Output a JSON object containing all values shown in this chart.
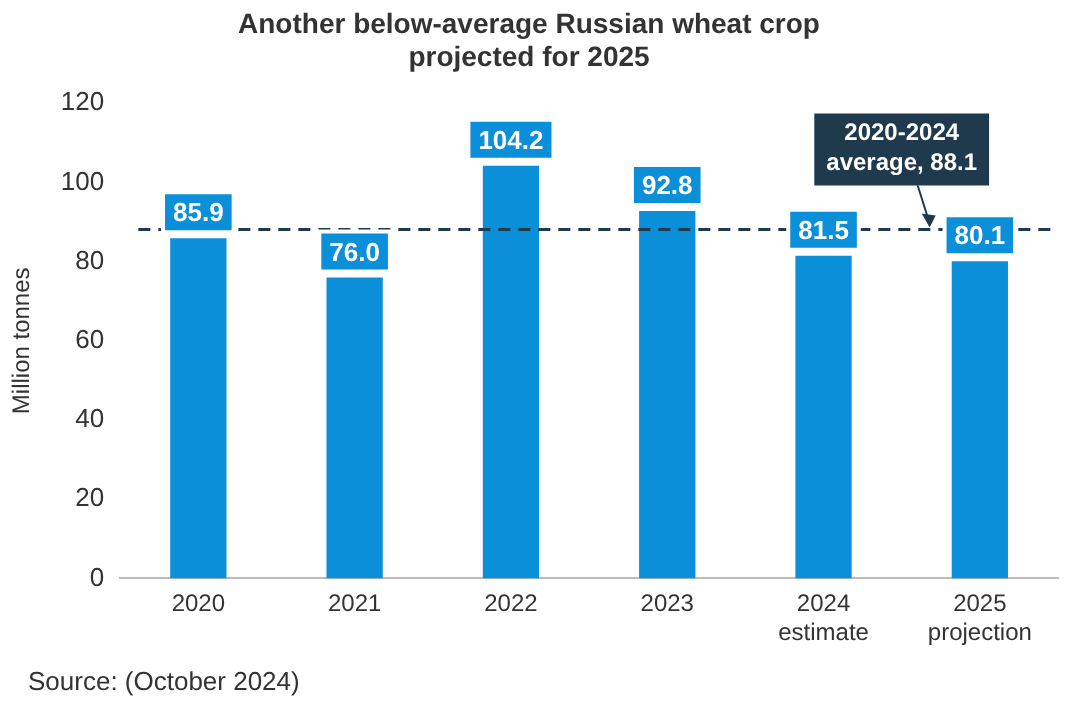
{
  "chart_data": {
    "type": "bar",
    "title": "Another below-average Russian wheat crop\nprojected for 2025",
    "ylabel": "Million tonnes",
    "categories": [
      "2020",
      "2021",
      "2022",
      "2023",
      "2024\nestimate",
      "2025\nprojection"
    ],
    "values": [
      85.9,
      76.0,
      104.2,
      92.8,
      81.5,
      80.1
    ],
    "color": "#0b8fd8",
    "ylim": [
      0,
      120
    ],
    "yticks": [
      0,
      20,
      40,
      60,
      80,
      100,
      120
    ],
    "grid": false,
    "legend": false,
    "value_labels": [
      "85.9",
      "76.0",
      "104.2",
      "92.8",
      "81.5",
      "80.1"
    ],
    "ref_lines": [
      {
        "axis": "y",
        "value": 88.1,
        "label": "2020-2024\naverage, 88.1",
        "color": "#1e3a4c",
        "line_style": "dashed"
      }
    ],
    "annotations": [
      "Source: (October 2024)"
    ]
  }
}
